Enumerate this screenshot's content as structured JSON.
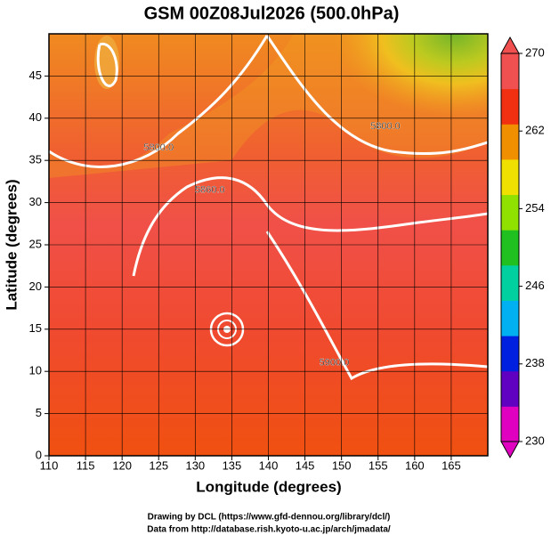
{
  "chart_data": {
    "type": "contour-map",
    "title": "GSM 00Z08Jul2026 (500.0hPa)",
    "x_label": "Longitude (degrees)",
    "y_label": "Latitude  (degrees)",
    "xlim": [
      110,
      170
    ],
    "ylim": [
      0,
      50
    ],
    "xticks": [
      110,
      115,
      120,
      125,
      130,
      135,
      140,
      145,
      150,
      155,
      160,
      165
    ],
    "yticks": [
      0,
      5,
      10,
      15,
      20,
      25,
      30,
      35,
      40,
      45
    ],
    "grid": true,
    "colorbar": {
      "lim": [
        230,
        270
      ],
      "ticks": [
        230,
        238,
        246,
        254,
        262,
        270
      ],
      "colors": [
        "#e000c0",
        "#6000c0",
        "#0020e0",
        "#00b0f0",
        "#00d0a0",
        "#20c020",
        "#90e000",
        "#f0e000",
        "#f09000",
        "#f03010",
        "#f05050"
      ]
    },
    "annotations": [
      {
        "text": "5800.0",
        "x": 125,
        "y": 36.5
      },
      {
        "text": "5860.0",
        "x": 132,
        "y": 31.5
      },
      {
        "text": "5800.0",
        "x": 156,
        "y": 39
      },
      {
        "text": "5900.0",
        "x": 149,
        "y": 11
      }
    ],
    "footer": [
      "Drawing by DCL (https://www.gfd-dennou.org/library/dcl/)",
      "Data from http://database.rish.kyoto-u.ac.jp/arch/jmadata/"
    ]
  }
}
